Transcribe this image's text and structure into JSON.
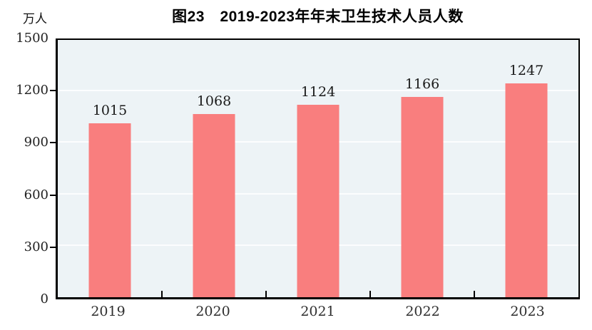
{
  "title": "图23　2019-2023年年末卫生技术人员人数",
  "unit_label": "万人",
  "colors": {
    "bar": "#F97E7E",
    "plot_background": "#EDF3F6",
    "gridline": "#FCFDFE",
    "axis": "#000000",
    "title_text": "#000000",
    "tick_text": "#222222"
  },
  "chart_data": {
    "type": "bar",
    "title": "图23　2019-2023年年末卫生技术人员人数",
    "ylabel": "万人",
    "categories": [
      "2019",
      "2020",
      "2021",
      "2022",
      "2023"
    ],
    "values": [
      1015,
      1068,
      1124,
      1166,
      1247
    ],
    "data_labels": [
      1015,
      1068,
      1124,
      1166,
      1247
    ],
    "ylim": [
      0,
      1500
    ],
    "yticks": [
      0,
      300,
      600,
      900,
      1200,
      1500
    ],
    "grid": "horizontal",
    "legend": "none"
  }
}
